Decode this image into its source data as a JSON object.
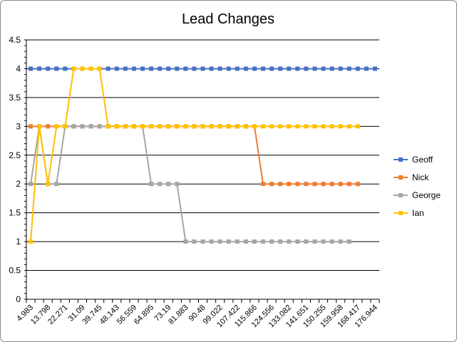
{
  "chart_data": {
    "type": "line",
    "title": "Lead Changes",
    "xlabel": "",
    "ylabel": "",
    "ylim": [
      0,
      4.5
    ],
    "y_ticks": [
      "0",
      "0.5",
      "1",
      "1.5",
      "2",
      "2.5",
      "3",
      "3.5",
      "4",
      "4.5"
    ],
    "x_tick_labels": [
      "4.983",
      "13.798",
      "22.271",
      "31.09",
      "39.745",
      "48.143",
      "56.559",
      "64.895",
      "73.19",
      "81.883",
      "90.48",
      "99.022",
      "107.422",
      "115.866",
      "124.556",
      "133.082",
      "141.651",
      "150.255",
      "159.958",
      "168.417",
      "176.944"
    ],
    "grid": "horizontal major gridlines",
    "legend_position": "right",
    "point_count": 41,
    "series": [
      {
        "name": "Geoff",
        "color": "#4472C4",
        "values": [
          4,
          4,
          4,
          4,
          4,
          4,
          4,
          4,
          4,
          4,
          4,
          4,
          4,
          4,
          4,
          4,
          4,
          4,
          4,
          4,
          4,
          4,
          4,
          4,
          4,
          4,
          4,
          4,
          4,
          4,
          4,
          4,
          4,
          4,
          4,
          4,
          4,
          4,
          4,
          4,
          4
        ]
      },
      {
        "name": "Nick",
        "color": "#ED7D31",
        "values": [
          3,
          3,
          3,
          3,
          3,
          3,
          3,
          3,
          3,
          3,
          3,
          3,
          3,
          3,
          3,
          3,
          3,
          3,
          3,
          3,
          3,
          3,
          3,
          3,
          3,
          3,
          3,
          2,
          2,
          2,
          2,
          2,
          2,
          2,
          2,
          2,
          2,
          2,
          2,
          null,
          null
        ]
      },
      {
        "name": "George",
        "color": "#A5A5A5",
        "values": [
          2,
          3,
          2,
          2,
          3,
          3,
          3,
          3,
          3,
          3,
          3,
          3,
          3,
          3,
          2,
          2,
          2,
          2,
          1,
          1,
          1,
          1,
          1,
          1,
          1,
          1,
          1,
          1,
          1,
          1,
          1,
          1,
          1,
          1,
          1,
          1,
          1,
          1,
          null,
          null,
          null
        ]
      },
      {
        "name": "Ian",
        "color": "#FFC000",
        "values": [
          1,
          3,
          2,
          3,
          3,
          4,
          4,
          4,
          4,
          3,
          3,
          3,
          3,
          3,
          3,
          3,
          3,
          3,
          3,
          3,
          3,
          3,
          3,
          3,
          3,
          3,
          3,
          3,
          3,
          3,
          3,
          3,
          3,
          3,
          3,
          3,
          3,
          3,
          3,
          null,
          null
        ]
      }
    ]
  }
}
